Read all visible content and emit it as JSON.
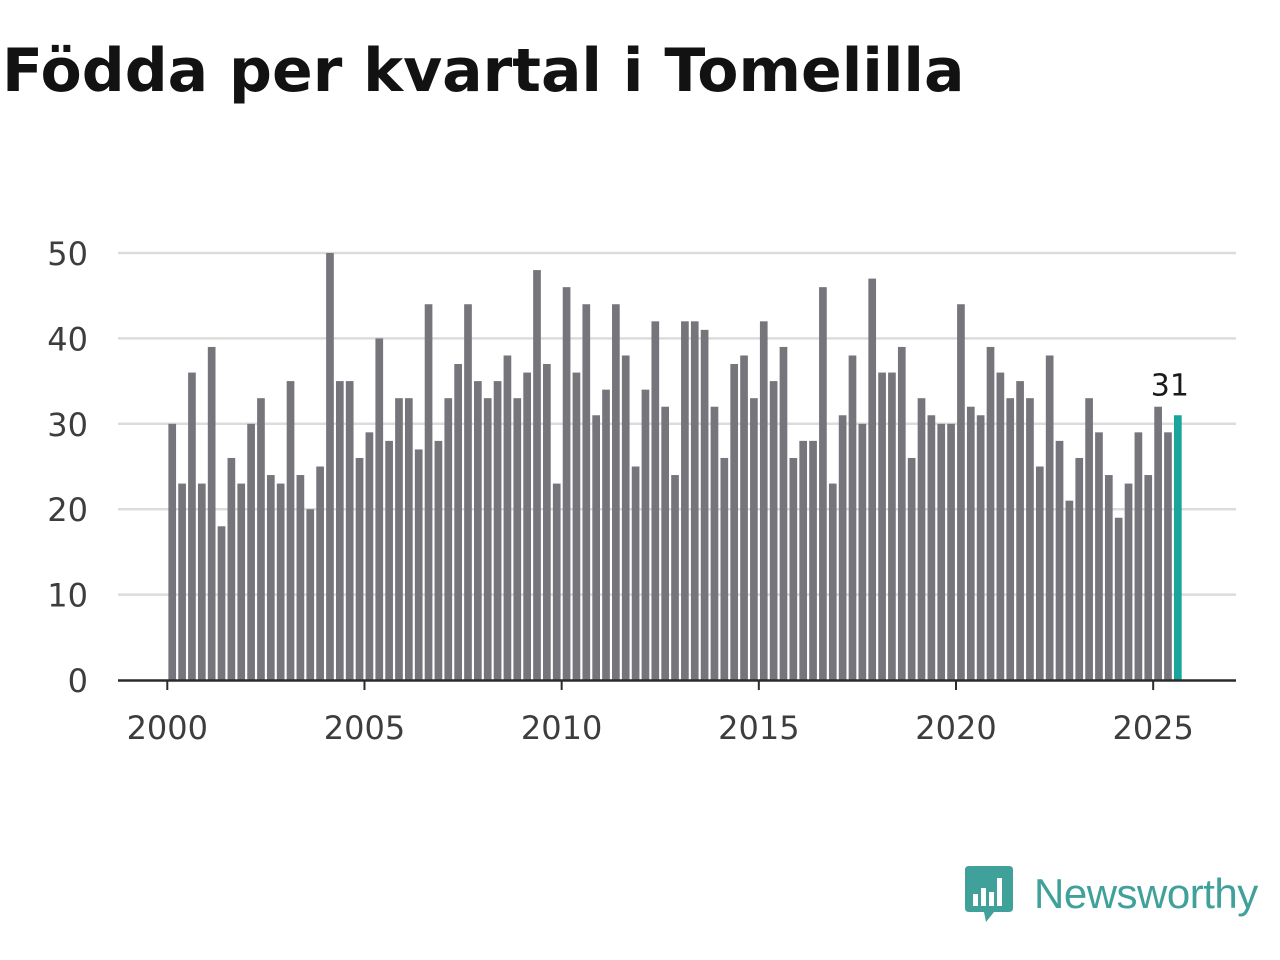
{
  "title": "Födda per kvartal i Tomelilla",
  "brand": {
    "name": "Newsworthy",
    "color": "#3fa19a",
    "icon": "newsworthy-logo-icon"
  },
  "chart_data": {
    "type": "bar",
    "title": "Födda per kvartal i Tomelilla",
    "xlabel": "",
    "ylabel": "",
    "ylim": [
      0,
      50
    ],
    "yticks": [
      0,
      10,
      20,
      30,
      40,
      50
    ],
    "xticks": [
      2000,
      2005,
      2010,
      2015,
      2020,
      2025
    ],
    "xlim": [
      1998.75,
      2027.1
    ],
    "bar_color": "#76757b",
    "highlight_color": "#1aa59a",
    "start_year": 2000,
    "quarters_per_year": 4,
    "values": [
      30,
      23,
      36,
      23,
      39,
      18,
      26,
      23,
      30,
      33,
      24,
      23,
      35,
      24,
      20,
      25,
      50,
      35,
      35,
      26,
      29,
      40,
      28,
      33,
      33,
      27,
      44,
      28,
      33,
      37,
      44,
      35,
      33,
      35,
      38,
      33,
      36,
      48,
      37,
      23,
      46,
      36,
      44,
      31,
      34,
      44,
      38,
      25,
      34,
      42,
      32,
      24,
      42,
      42,
      41,
      32,
      26,
      37,
      38,
      33,
      42,
      35,
      39,
      26,
      28,
      28,
      46,
      23,
      31,
      38,
      30,
      47,
      36,
      36,
      39,
      26,
      33,
      31,
      30,
      30,
      44,
      32,
      31,
      39,
      36,
      33,
      35,
      33,
      25,
      38,
      28,
      21,
      26,
      33,
      29,
      24,
      19,
      23,
      29,
      24,
      32,
      29,
      31
    ],
    "annotation": {
      "index": 102,
      "label": "31"
    }
  }
}
